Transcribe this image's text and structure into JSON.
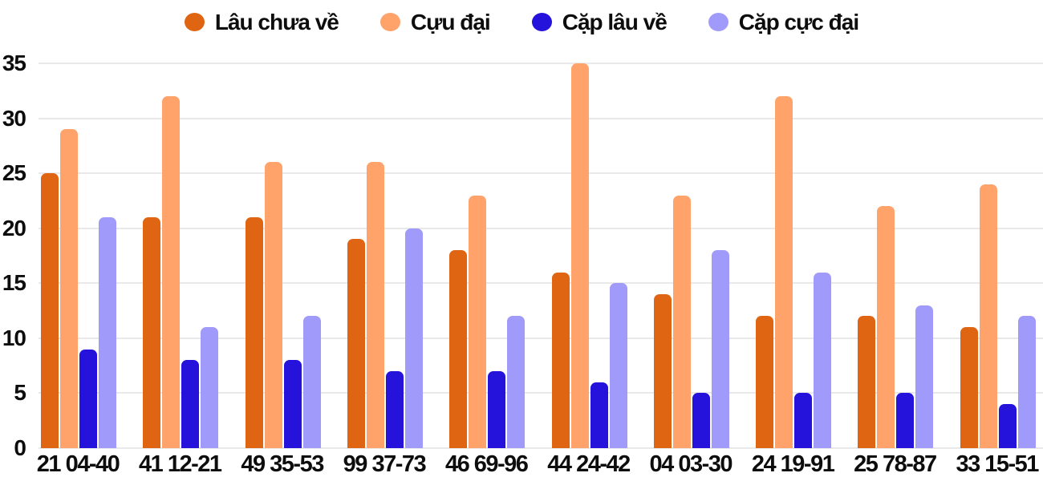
{
  "chart_data": {
    "type": "bar",
    "title": "",
    "xlabel": "",
    "ylabel": "",
    "grid": true,
    "legend_position": "top",
    "ylim": [
      0,
      35
    ],
    "yticks": [
      0,
      5,
      10,
      15,
      20,
      25,
      30,
      35
    ],
    "categories": [
      "21 04-40",
      "41 12-21",
      "49 35-53",
      "99 37-73",
      "46 69-96",
      "44 24-42",
      "04 03-30",
      "24 19-91",
      "25 78-87",
      "33 15-51"
    ],
    "series": [
      {
        "name": "Lâu chưa về",
        "color": "#e06513",
        "values": [
          25,
          21,
          21,
          19,
          18,
          16,
          14,
          12,
          12,
          11
        ]
      },
      {
        "name": "Cựu đại",
        "color": "#ffa36b",
        "values": [
          29,
          32,
          26,
          26,
          23,
          35,
          23,
          32,
          22,
          24
        ]
      },
      {
        "name": "Cặp lâu về",
        "color": "#2512db",
        "values": [
          9,
          8,
          8,
          7,
          7,
          6,
          5,
          5,
          5,
          4
        ]
      },
      {
        "name": "Cặp cực đại",
        "color": "#a09bfa",
        "values": [
          21,
          11,
          12,
          20,
          12,
          15,
          18,
          16,
          13,
          12
        ]
      }
    ],
    "gridline_color": "#e9e9e9",
    "text_color": "#0d0d0d"
  }
}
